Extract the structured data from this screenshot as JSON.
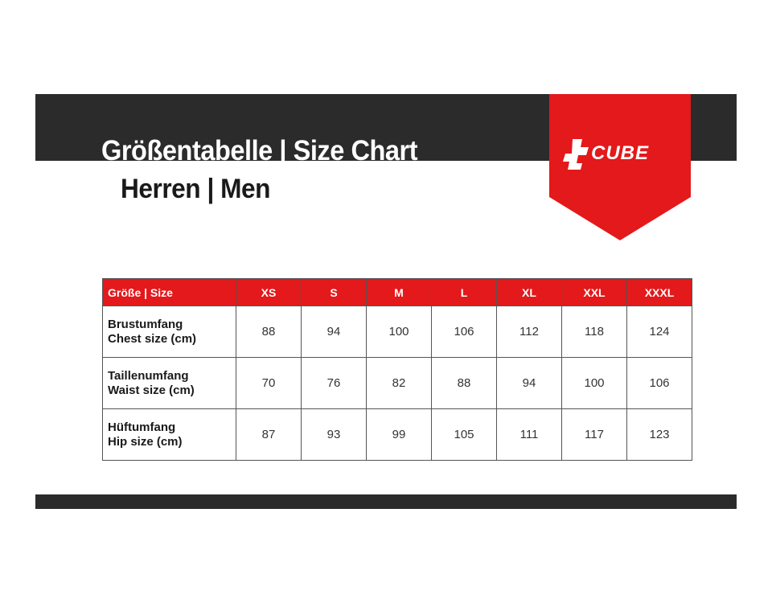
{
  "header": {
    "title": "Größentabelle | Size Chart",
    "subtitle": "Herren | Men",
    "brand": "CUBE",
    "brand_color": "#e3191b"
  },
  "table": {
    "columns": [
      "Größe | Size",
      "XS",
      "S",
      "M",
      "L",
      "XL",
      "XXL",
      "XXXL"
    ],
    "rows": [
      {
        "label_de": "Brustumfang",
        "label_en": "Chest size (cm)",
        "values": [
          "88",
          "94",
          "100",
          "106",
          "112",
          "118",
          "124"
        ]
      },
      {
        "label_de": "Taillenumfang",
        "label_en": "Waist size (cm)",
        "values": [
          "70",
          "76",
          "82",
          "88",
          "94",
          "100",
          "106"
        ]
      },
      {
        "label_de": "Hüftumfang",
        "label_en": "Hip size (cm)",
        "values": [
          "87",
          "93",
          "99",
          "105",
          "111",
          "117",
          "123"
        ]
      }
    ]
  }
}
